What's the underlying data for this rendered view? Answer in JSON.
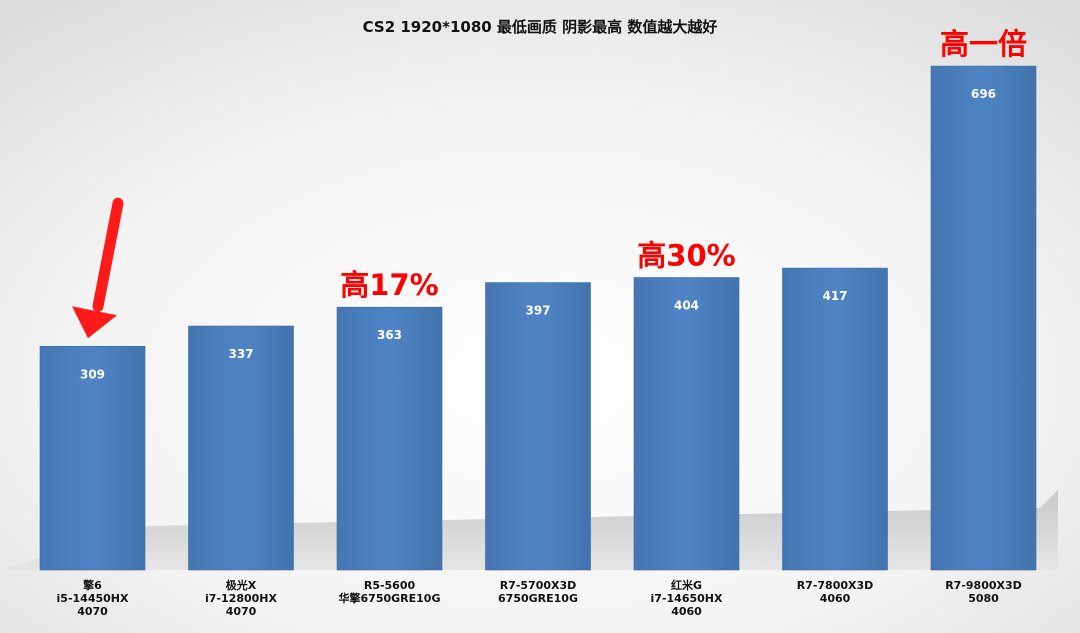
{
  "chart_data": {
    "type": "bar",
    "title": "CS2 1920*1080 最低画质 阴影最高 数值越大越好",
    "xlabel": "",
    "ylabel": "",
    "ylim": [
      0,
      750
    ],
    "grid": false,
    "legend": "none",
    "categories": [
      [
        "擎6",
        "i5-14450HX",
        "4070"
      ],
      [
        "极光X",
        "i7-12800HX",
        "4070"
      ],
      [
        "R5-5600",
        "华擎6750GRE10G"
      ],
      [
        "R7-5700X3D",
        "6750GRE10G"
      ],
      [
        "红米G",
        "i7-14650HX",
        "4060"
      ],
      [
        "R7-7800X3D",
        "4060"
      ],
      [
        "R7-9800X3D",
        "5080"
      ]
    ],
    "values": [
      309,
      337,
      363,
      397,
      404,
      417,
      696
    ],
    "annotations": [
      {
        "category_index": 2,
        "text": "高17%"
      },
      {
        "category_index": 4,
        "text": "高30%"
      },
      {
        "category_index": 6,
        "text": "高一倍"
      }
    ],
    "arrow_category_index": 0,
    "colors": {
      "bar": "#4a7ebb",
      "bar_edge": "#3b6aa0",
      "annotation": "#ff0000",
      "arrow": "#ff1a1a",
      "floor": "#d2d2d2"
    }
  }
}
